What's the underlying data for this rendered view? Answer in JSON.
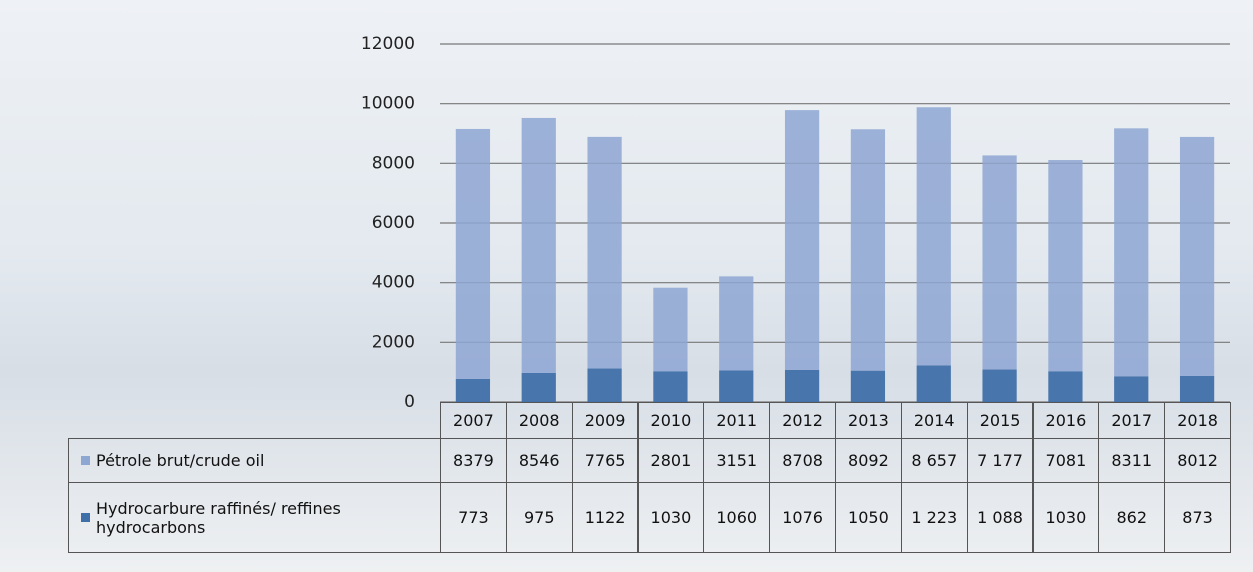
{
  "chart_data": {
    "type": "bar",
    "stacked": true,
    "categories": [
      "2007",
      "2008",
      "2009",
      "2010",
      "2011",
      "2012",
      "2013",
      "2014",
      "2015",
      "2016",
      "2017",
      "2018"
    ],
    "series": [
      {
        "name": "Pétrole brut/crude oil",
        "color": "#8ea6d2",
        "values": [
          8379,
          8546,
          7765,
          2801,
          3151,
          8708,
          8092,
          8657,
          7177,
          7081,
          8311,
          8012
        ],
        "value_labels": [
          "8379",
          "8546",
          "7765",
          "2801",
          "3151",
          "8708",
          "8092",
          "8 657",
          "7 177",
          "7081",
          "8311",
          "8012"
        ]
      },
      {
        "name": "Hydrocarbure raffinés/ reffines hydrocarbons",
        "color": "#3f6fa9",
        "values": [
          773,
          975,
          1122,
          1030,
          1060,
          1076,
          1050,
          1223,
          1088,
          1030,
          862,
          873
        ],
        "value_labels": [
          "773",
          "975",
          "1122",
          "1030",
          "1060",
          "1076",
          "1050",
          "1 223",
          "1 088",
          "1030",
          "862",
          "873"
        ]
      }
    ],
    "ylim": [
      0,
      12000
    ],
    "yticks": [
      0,
      2000,
      4000,
      6000,
      8000,
      10000,
      12000
    ],
    "grid": true
  }
}
